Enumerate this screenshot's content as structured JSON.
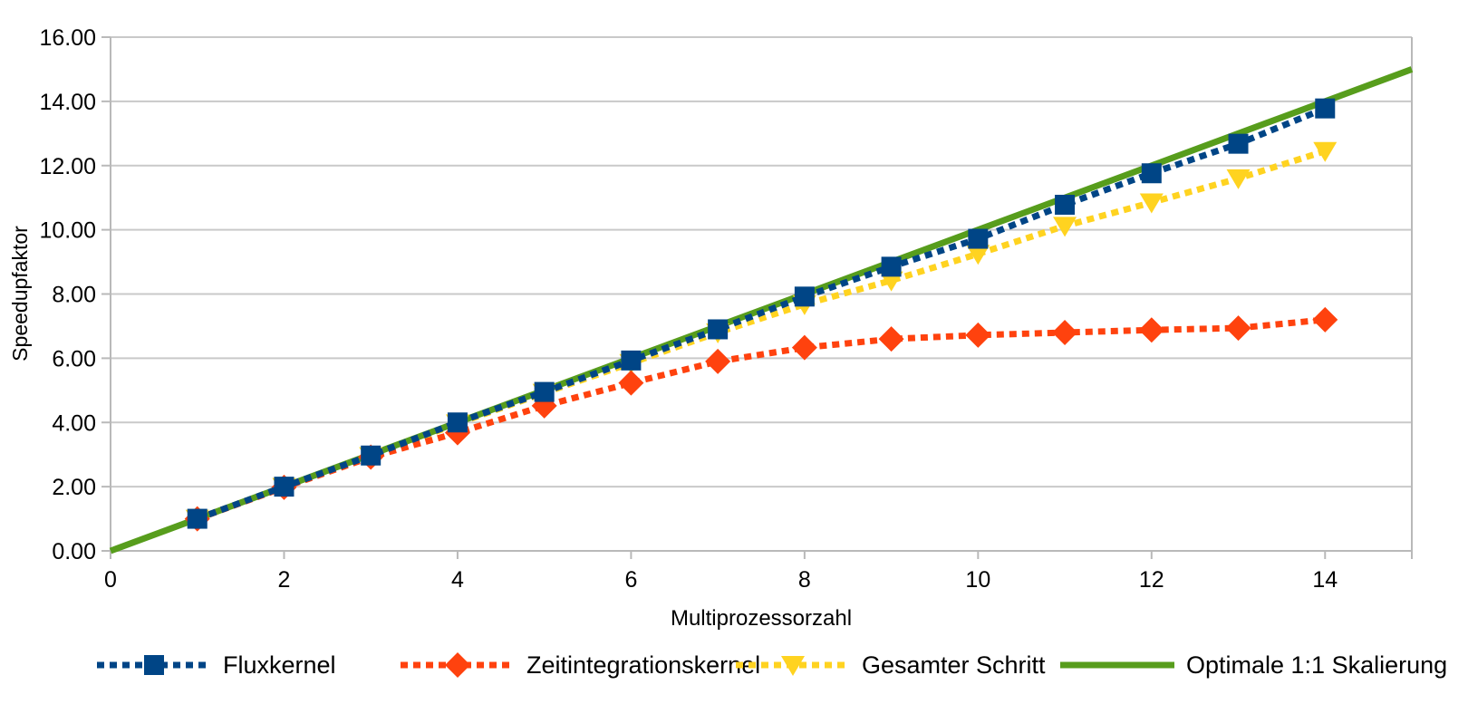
{
  "chart_data": {
    "type": "line",
    "title": "",
    "xlabel": "Multiprozessorzahl",
    "ylabel": "Speedupfaktor",
    "xlim": [
      0,
      15
    ],
    "ylim": [
      0,
      16
    ],
    "grid": "horizontal-only",
    "gridline_color": "#c9c9c9",
    "axis_color": "#b9b9b9",
    "legend_position": "bottom",
    "xticks": [
      {
        "v": 0,
        "label": "0"
      },
      {
        "v": 2,
        "label": "2"
      },
      {
        "v": 4,
        "label": "4"
      },
      {
        "v": 6,
        "label": "6"
      },
      {
        "v": 8,
        "label": "8"
      },
      {
        "v": 10,
        "label": "10"
      },
      {
        "v": 12,
        "label": "12"
      },
      {
        "v": 14,
        "label": "14"
      }
    ],
    "yticks": [
      {
        "v": 0,
        "label": "0.00"
      },
      {
        "v": 2,
        "label": "2.00"
      },
      {
        "v": 4,
        "label": "4.00"
      },
      {
        "v": 6,
        "label": "6.00"
      },
      {
        "v": 8,
        "label": "8.00"
      },
      {
        "v": 10,
        "label": "10.00"
      },
      {
        "v": 12,
        "label": "12.00"
      },
      {
        "v": 14,
        "label": "14.00"
      },
      {
        "v": 16,
        "label": "16.00"
      }
    ],
    "x": [
      1,
      2,
      3,
      4,
      5,
      6,
      7,
      8,
      9,
      10,
      11,
      12,
      13,
      14
    ],
    "series": [
      {
        "name": "Fluxkernel",
        "color": "#004586",
        "marker": "square",
        "line": "dotted",
        "values": [
          1.0,
          2.0,
          2.97,
          4.0,
          4.95,
          5.93,
          6.9,
          7.92,
          8.85,
          9.72,
          10.78,
          11.76,
          12.68,
          13.78
        ]
      },
      {
        "name": "Zeitintegrationskernel",
        "color": "#FF420E",
        "marker": "diamond",
        "line": "dotted",
        "values": [
          1.0,
          1.98,
          2.92,
          3.68,
          4.52,
          5.23,
          5.9,
          6.33,
          6.6,
          6.72,
          6.8,
          6.88,
          6.94,
          7.2
        ]
      },
      {
        "name": "Gesamter Schritt",
        "color": "#FFD320",
        "marker": "triangle-down",
        "line": "dotted",
        "values": [
          1.0,
          1.99,
          2.95,
          3.97,
          4.92,
          5.85,
          6.8,
          7.68,
          8.42,
          9.25,
          10.12,
          10.85,
          11.6,
          12.45
        ]
      },
      {
        "name": "Optimale 1:1 Skalierung",
        "color": "#579D1C",
        "marker": "none",
        "line": "solid",
        "x": [
          0,
          15
        ],
        "values": [
          0,
          15
        ]
      }
    ],
    "draw_order_bottom_to_top": [
      3,
      2,
      1,
      0
    ],
    "legend_order": [
      0,
      1,
      2,
      3
    ]
  }
}
